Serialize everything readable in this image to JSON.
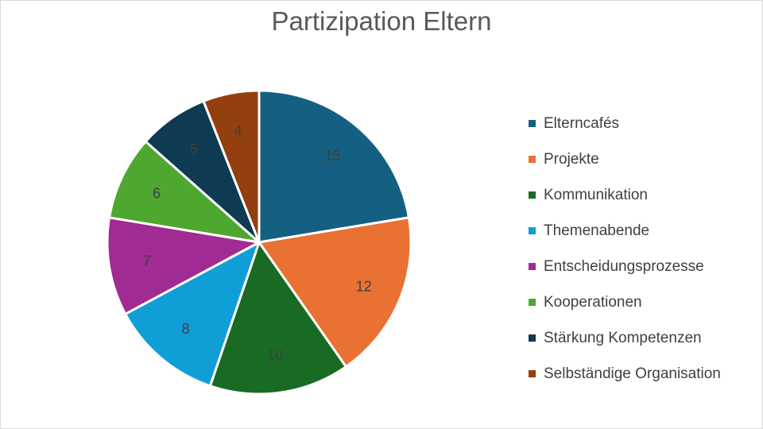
{
  "chart_data": {
    "type": "pie",
    "title": "Partizipation Eltern",
    "legend_position": "right",
    "slices": [
      {
        "label": "Elterncafés",
        "value": 15,
        "color": "#156082"
      },
      {
        "label": "Projekte",
        "value": 12,
        "color": "#E97132"
      },
      {
        "label": "Kommunikation",
        "value": 10,
        "color": "#196B24"
      },
      {
        "label": "Themenabende",
        "value": 8,
        "color": "#0F9ED5"
      },
      {
        "label": "Entscheidungsprozesse",
        "value": 7,
        "color": "#A02B93"
      },
      {
        "label": "Kooperationen",
        "value": 6,
        "color": "#4EA72E"
      },
      {
        "label": "Stärkung Kompetenzen",
        "value": 5,
        "color": "#0E3A52"
      },
      {
        "label": "Selbständige Organisation",
        "value": 4,
        "color": "#933F10"
      }
    ]
  }
}
